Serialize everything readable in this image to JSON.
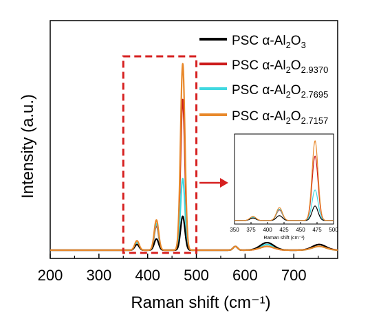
{
  "chart_data": {
    "type": "line",
    "xlabel": "Raman shift (cm⁻¹)",
    "ylabel": "Intensity (a.u.)",
    "xlim": [
      200,
      790
    ],
    "ylim": [
      0,
      100
    ],
    "x_ticks": [
      200,
      300,
      400,
      500,
      600,
      700
    ],
    "y_ticks": [],
    "grid": false,
    "legend_position": "top-right",
    "series": [
      {
        "legend_main": "PSC α-Al",
        "legend_sub1": "2",
        "legend_mid": "O",
        "legend_sub2": "3",
        "color": "#000000",
        "peaks": [
          [
            378,
            3
          ],
          [
            418,
            6
          ],
          [
            472,
            18
          ],
          [
            580,
            2
          ],
          [
            645,
            4
          ],
          [
            752,
            3
          ]
        ]
      },
      {
        "legend_main": "PSC α-Al",
        "legend_sub1": "2",
        "legend_mid": "O",
        "legend_sub2": "2.9370",
        "color": "#cc1a1a",
        "peaks": [
          [
            378,
            4
          ],
          [
            418,
            13
          ],
          [
            472,
            80
          ],
          [
            580,
            2
          ],
          [
            645,
            2
          ],
          [
            752,
            3
          ]
        ]
      },
      {
        "legend_main": "PSC α-Al",
        "legend_sub1": "2",
        "legend_mid": "O",
        "legend_sub2": "2.7695",
        "color": "#40d8e0",
        "peaks": [
          [
            378,
            4
          ],
          [
            418,
            14
          ],
          [
            472,
            38
          ],
          [
            580,
            2
          ],
          [
            645,
            3
          ],
          [
            752,
            2
          ]
        ]
      },
      {
        "legend_main": "PSC α-Al",
        "legend_sub1": "2",
        "legend_mid": "O",
        "legend_sub2": "2.7157",
        "color": "#e8882a",
        "peaks": [
          [
            378,
            5
          ],
          [
            418,
            16
          ],
          [
            472,
            99
          ],
          [
            580,
            2
          ],
          [
            645,
            2
          ],
          [
            752,
            2
          ]
        ]
      }
    ],
    "inset": {
      "xlabel": "Raman shift (cm⁻¹)",
      "xlim": [
        350,
        500
      ],
      "x_ticks": [
        350,
        375,
        400,
        425,
        450,
        475,
        500
      ],
      "highlight_range": [
        350,
        500
      ]
    }
  }
}
